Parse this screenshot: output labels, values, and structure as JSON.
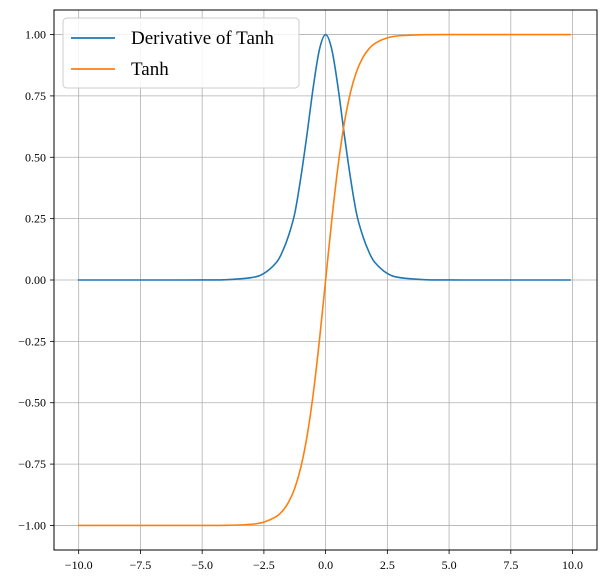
{
  "chart_data": {
    "type": "line",
    "title": "",
    "xlabel": "",
    "ylabel": "",
    "xlim": [
      -11.0,
      10.99
    ],
    "ylim": [
      -1.1,
      1.1
    ],
    "x_ticks": [
      {
        "value": -10.0,
        "label": "−10.0"
      },
      {
        "value": -7.5,
        "label": "−7.5"
      },
      {
        "value": -5.0,
        "label": "−5.0"
      },
      {
        "value": -2.5,
        "label": "−2.5"
      },
      {
        "value": 0.0,
        "label": "0.0"
      },
      {
        "value": 2.5,
        "label": "2.5"
      },
      {
        "value": 5.0,
        "label": "5.0"
      },
      {
        "value": 7.5,
        "label": "7.5"
      },
      {
        "value": 10.0,
        "label": "10.0"
      }
    ],
    "y_ticks": [
      {
        "value": 1.0,
        "label": "1.00"
      },
      {
        "value": 0.75,
        "label": "0.75"
      },
      {
        "value": 0.5,
        "label": "0.50"
      },
      {
        "value": 0.25,
        "label": "0.25"
      },
      {
        "value": 0.0,
        "label": "0.00"
      },
      {
        "value": -0.25,
        "label": "−0.25"
      },
      {
        "value": -0.5,
        "label": "−0.50"
      },
      {
        "value": -0.75,
        "label": "−0.75"
      },
      {
        "value": -1.0,
        "label": "−1.00"
      }
    ],
    "grid": true,
    "legend_position": "top-left",
    "series": [
      {
        "name": "Derivative of Tanh",
        "color": "#1f77b4",
        "x": [
          -10,
          -9,
          -8,
          -7,
          -6,
          -5,
          -4,
          -3,
          -2.5,
          -2,
          -1.75,
          -1.5,
          -1.25,
          -1,
          -0.75,
          -0.5,
          -0.25,
          0,
          0.25,
          0.5,
          0.75,
          1,
          1.25,
          1.5,
          1.75,
          2,
          2.5,
          3,
          4,
          5,
          6,
          7,
          8,
          9,
          9.9
        ],
        "y": [
          0.0,
          0.0,
          0.0,
          0.0,
          0.0,
          0.0002,
          0.0013,
          0.0099,
          0.0266,
          0.0707,
          0.1154,
          0.181,
          0.2714,
          0.42,
          0.5966,
          0.7864,
          0.9391,
          1.0,
          0.9391,
          0.7864,
          0.5966,
          0.42,
          0.2714,
          0.181,
          0.1154,
          0.0707,
          0.0266,
          0.0099,
          0.0013,
          0.0002,
          0.0,
          0.0,
          0.0,
          0.0,
          0.0
        ]
      },
      {
        "name": "Tanh",
        "color": "#ff7f0e",
        "x": [
          -10,
          -9,
          -8,
          -7,
          -6,
          -5,
          -4,
          -3,
          -2.5,
          -2,
          -1.75,
          -1.5,
          -1.25,
          -1,
          -0.75,
          -0.5,
          -0.25,
          0,
          0.25,
          0.5,
          0.75,
          1,
          1.25,
          1.5,
          1.75,
          2,
          2.5,
          3,
          4,
          5,
          6,
          7,
          8,
          9,
          9.9
        ],
        "y": [
          -1.0,
          -1.0,
          -1.0,
          -1.0,
          -1.0,
          -0.9999,
          -0.9993,
          -0.9951,
          -0.9866,
          -0.964,
          -0.9414,
          -0.9051,
          -0.8483,
          -0.7616,
          -0.6351,
          -0.4621,
          -0.2449,
          0.0,
          0.2449,
          0.4621,
          0.6351,
          0.7616,
          0.8483,
          0.9051,
          0.9414,
          0.964,
          0.9866,
          0.9951,
          0.9993,
          0.9999,
          1.0,
          1.0,
          1.0,
          1.0,
          1.0
        ]
      }
    ]
  }
}
